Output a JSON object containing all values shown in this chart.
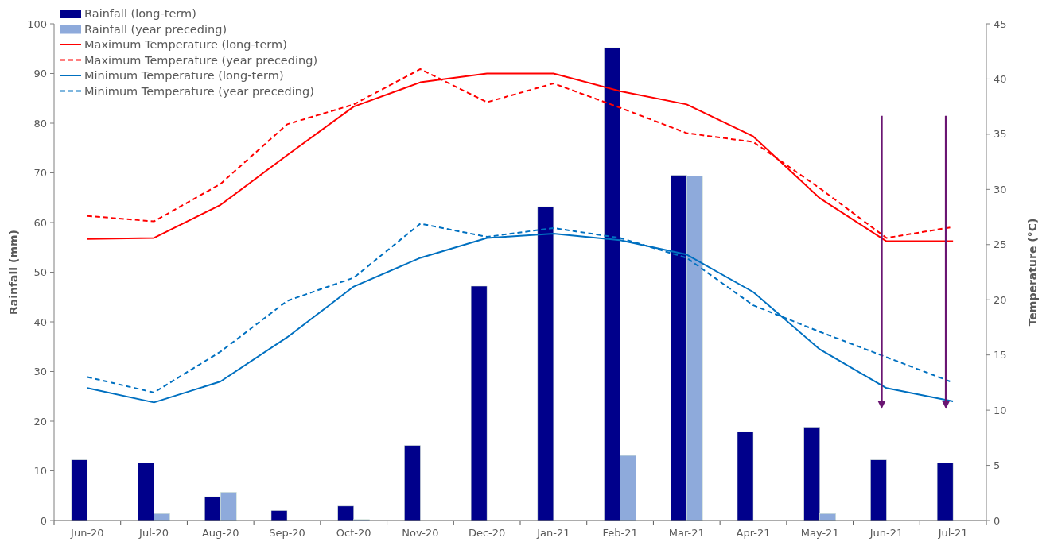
{
  "chart_data": {
    "type": "bar",
    "xlabel": null,
    "ylabel": "Rainfall (mm)",
    "y2label": "Temperature (°C)",
    "categories": [
      "Jun-20",
      "Jul-20",
      "Aug-20",
      "Sep-20",
      "Oct-20",
      "Nov-20",
      "Dec-20",
      "Jan-21",
      "Feb-21",
      "Mar-21",
      "Apr-21",
      "May-21",
      "Jun-21",
      "Jul-21"
    ],
    "series": [
      {
        "name": "Rainfall (long-term)",
        "color": "#00008b",
        "values": [
          12.2,
          11.6,
          4.8,
          2.0,
          2.9,
          15.1,
          47.2,
          63.2,
          95.2,
          69.5,
          17.9,
          18.8,
          12.2,
          11.6
        ]
      },
      {
        "name": "Rainfall (year preceding)",
        "color": "#8eaadb",
        "values": [
          0,
          1.4,
          5.7,
          0,
          0.2,
          0,
          0,
          0,
          13.1,
          69.4,
          0,
          1.4,
          0,
          0
        ]
      },
      {
        "name": "Maximum Temperature (long-term)",
        "type": "line",
        "axis": "y2",
        "color": "#ff0000",
        "line_style": "solid",
        "values": [
          25.5,
          25.6,
          28.6,
          33.1,
          37.5,
          39.7,
          40.5,
          40.5,
          38.9,
          37.7,
          34.8,
          29.2,
          25.3,
          25.3
        ]
      },
      {
        "name": "Maximum Temperature (year preceding)",
        "type": "line",
        "axis": "y2",
        "color": "#ff0000",
        "line_style": "dashed",
        "values": [
          27.6,
          27.1,
          30.5,
          35.9,
          37.7,
          40.9,
          37.9,
          39.6,
          37.4,
          35.1,
          34.3,
          30.1,
          25.6,
          26.6
        ]
      },
      {
        "name": "Minimum Temperature (long-term)",
        "type": "line",
        "axis": "y2",
        "color": "#0070c0",
        "line_style": "solid",
        "values": [
          12.0,
          10.7,
          12.6,
          16.6,
          21.2,
          23.8,
          25.6,
          26.0,
          25.4,
          24.1,
          20.7,
          15.5,
          12.0,
          10.8
        ]
      },
      {
        "name": "Minimum Temperature (year preceding)",
        "type": "line",
        "axis": "y2",
        "color": "#0070c0",
        "line_style": "dashed",
        "values": [
          13.0,
          11.6,
          15.3,
          19.9,
          22.0,
          26.9,
          25.7,
          26.5,
          25.6,
          23.8,
          19.5,
          17.1,
          14.8,
          12.5
        ]
      }
    ],
    "ylim": [
      0,
      100
    ],
    "yticks": [
      0,
      10,
      20,
      30,
      40,
      50,
      60,
      70,
      80,
      90,
      100
    ],
    "y2lim": [
      0,
      45
    ],
    "y2ticks": [
      0,
      5,
      10,
      15,
      20,
      25,
      30,
      35,
      40,
      45
    ],
    "grid": false,
    "legend": "top left",
    "marker": "none"
  }
}
